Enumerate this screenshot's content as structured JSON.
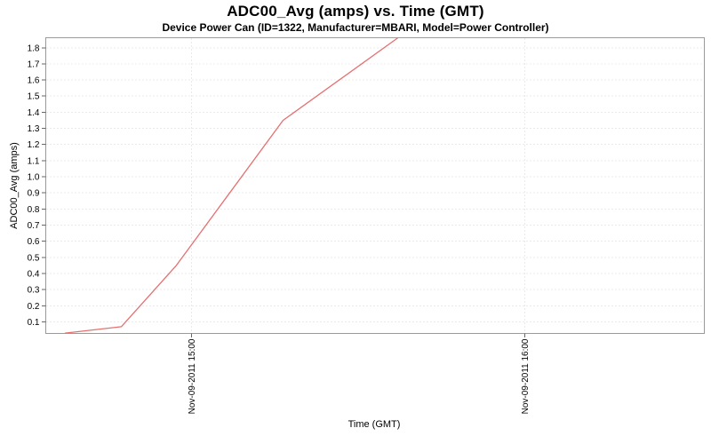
{
  "chart_data": {
    "type": "line",
    "title": "ADC00_Avg (amps) vs. Time (GMT)",
    "subtitle": "Device Power Can (ID=1322, Manufacturer=MBARI, Model=Power Controller)",
    "xlabel": "Time (GMT)",
    "ylabel": "ADC00_Avg (amps)",
    "legend": "none",
    "grid": "dotted",
    "x_axis": {
      "tick_labels": [
        "Nov-09-2011 15:00",
        "Nov-09-2011 16:00"
      ],
      "tick_minutes_after_1400": [
        60,
        120
      ],
      "range_minutes_after_1400": [
        33.8,
        152.3
      ]
    },
    "y_axis": {
      "ticks": [
        "0.1",
        "0.2",
        "0.3",
        "0.4",
        "0.5",
        "0.6",
        "0.7",
        "0.8",
        "0.9",
        "1.0",
        "1.1",
        "1.2",
        "1.3",
        "1.4",
        "1.5",
        "1.6",
        "1.7",
        "1.8"
      ],
      "range": [
        0.028,
        1.862
      ]
    },
    "series": [
      {
        "name": "ADC00_Avg",
        "color": "#e57070",
        "points": [
          {
            "time": "14:37",
            "minutes": 37.3,
            "value": 0.03
          },
          {
            "time": "14:47",
            "minutes": 47.4,
            "value": 0.07
          },
          {
            "time": "14:57",
            "minutes": 57.3,
            "value": 0.45
          },
          {
            "time": "15:16",
            "minutes": 76.5,
            "value": 1.35
          },
          {
            "time": "15:37",
            "minutes": 97.1,
            "value": 1.86
          }
        ],
        "note": "line is clipped at the top edge of the plot at the last point"
      }
    ],
    "colors": {
      "grid": "#d6d6d6",
      "plot_border": "#9a9a9a",
      "tick_mark": "#666666",
      "text": "#000000",
      "background": "#ffffff"
    }
  }
}
